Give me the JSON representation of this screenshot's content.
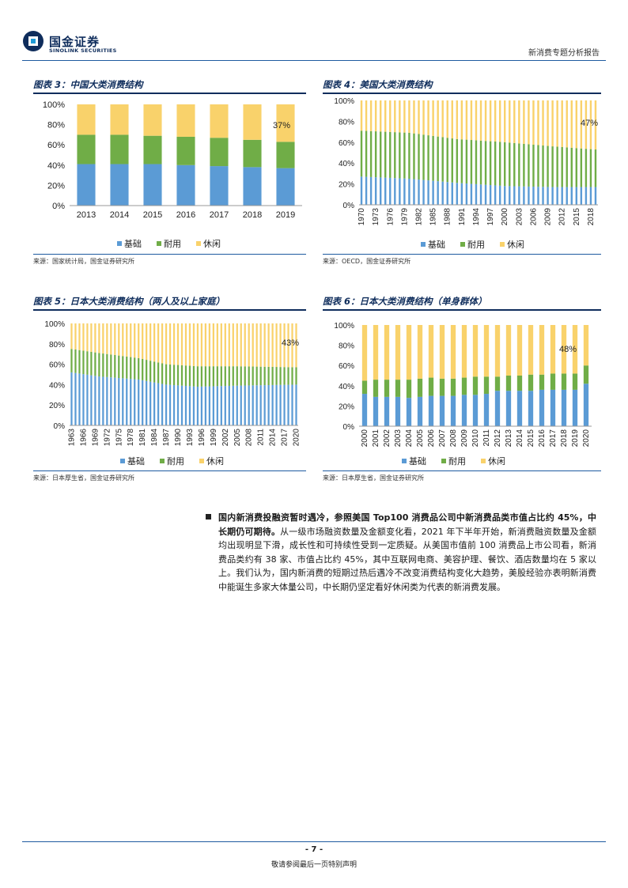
{
  "header": {
    "company_cn": "国金证券",
    "company_en": "SINOLINK SECURITIES",
    "report_title": "新消费专题分析报告"
  },
  "colors": {
    "basic": "#5b9bd5",
    "durable": "#70ad47",
    "leisure": "#f9d26b",
    "brand": "#0f2d5c"
  },
  "legend": [
    "基础",
    "耐用",
    "休闲"
  ],
  "figures": [
    {
      "title": "图表 3：中国大类消费结构",
      "source": "来源：国家统计局，国金证券研究所",
      "chart_data": {
        "type": "bar",
        "stacked": true,
        "categories": [
          "2013",
          "2014",
          "2015",
          "2016",
          "2017",
          "2018",
          "2019"
        ],
        "series": [
          {
            "name": "基础",
            "values": [
              41,
              41,
              41,
              40,
              39,
              38,
              37
            ]
          },
          {
            "name": "耐用",
            "values": [
              29,
              29,
              28,
              28,
              28,
              27,
              26
            ]
          },
          {
            "name": "休闲",
            "values": [
              30,
              30,
              31,
              32,
              33,
              35,
              37
            ]
          }
        ],
        "ylim": [
          0,
          100
        ],
        "yticks": [
          "0%",
          "20%",
          "40%",
          "60%",
          "80%",
          "100%"
        ],
        "annotation": "37%",
        "legend_position": "bottom"
      }
    },
    {
      "title": "图表 4：美国大类消费结构",
      "source": "来源：OECD，国金证券研究所",
      "chart_data": {
        "type": "bar",
        "stacked": true,
        "year_start": 1970,
        "year_end": 2019,
        "label_years": [
          "1970",
          "1973",
          "1976",
          "1979",
          "1982",
          "1985",
          "1988",
          "1991",
          "1994",
          "1997",
          "2000",
          "2003",
          "2006",
          "2009",
          "2012",
          "2015",
          "2018"
        ],
        "series": [
          {
            "name": "基础",
            "points": [
              [
                1970,
                27
              ],
              [
                1980,
                25
              ],
              [
                1990,
                21
              ],
              [
                2000,
                18
              ],
              [
                2010,
                17
              ],
              [
                2019,
                17
              ]
            ]
          },
          {
            "name": "耐用",
            "points": [
              [
                1970,
                44
              ],
              [
                1980,
                44
              ],
              [
                1990,
                42
              ],
              [
                2000,
                42
              ],
              [
                2010,
                39
              ],
              [
                2019,
                36
              ]
            ]
          },
          {
            "name": "休闲",
            "points": [
              [
                1970,
                29
              ],
              [
                1980,
                31
              ],
              [
                1990,
                37
              ],
              [
                2000,
                40
              ],
              [
                2010,
                44
              ],
              [
                2019,
                47
              ]
            ]
          }
        ],
        "ylim": [
          0,
          100
        ],
        "yticks": [
          "0%",
          "20%",
          "40%",
          "60%",
          "80%",
          "100%"
        ],
        "annotation": "47%",
        "legend_position": "bottom"
      }
    },
    {
      "title": "图表 5：日本大类消费结构（两人及以上家庭）",
      "source": "来源：日本厚生省，国金证券研究所",
      "chart_data": {
        "type": "bar",
        "stacked": true,
        "year_start": 1963,
        "year_end": 2020,
        "label_years": [
          "1963",
          "1966",
          "1969",
          "1972",
          "1975",
          "1978",
          "1981",
          "1984",
          "1987",
          "1990",
          "1993",
          "1996",
          "1999",
          "2002",
          "2005",
          "2008",
          "2011",
          "2014",
          "2017",
          "2020"
        ],
        "series": [
          {
            "name": "基础",
            "points": [
              [
                1963,
                52
              ],
              [
                1970,
                48
              ],
              [
                1980,
                45
              ],
              [
                1987,
                40
              ],
              [
                1995,
                38
              ],
              [
                2005,
                39
              ],
              [
                2020,
                40
              ]
            ]
          },
          {
            "name": "耐用",
            "points": [
              [
                1963,
                23
              ],
              [
                1970,
                23
              ],
              [
                1980,
                21
              ],
              [
                1987,
                20
              ],
              [
                1995,
                20
              ],
              [
                2005,
                19
              ],
              [
                2020,
                17
              ]
            ]
          },
          {
            "name": "休闲",
            "points": [
              [
                1963,
                25
              ],
              [
                1970,
                29
              ],
              [
                1980,
                34
              ],
              [
                1987,
                40
              ],
              [
                1995,
                42
              ],
              [
                2005,
                42
              ],
              [
                2020,
                43
              ]
            ]
          }
        ],
        "ylim": [
          0,
          100
        ],
        "yticks": [
          "0%",
          "20%",
          "40%",
          "60%",
          "80%",
          "100%"
        ],
        "annotation": "43%",
        "legend_position": "bottom"
      }
    },
    {
      "title": "图表 6：日本大类消费结构（单身群体）",
      "source": "来源：日本厚生省，国金证券研究所",
      "chart_data": {
        "type": "bar",
        "stacked": true,
        "categories": [
          "2000",
          "2001",
          "2002",
          "2003",
          "2004",
          "2005",
          "2006",
          "2007",
          "2008",
          "2009",
          "2010",
          "2011",
          "2012",
          "2013",
          "2014",
          "2015",
          "2016",
          "2017",
          "2018",
          "2019",
          "2020"
        ],
        "series": [
          {
            "name": "基础",
            "values": [
              32,
              29,
              29,
              29,
              28,
              29,
              30,
              30,
              30,
              31,
              31,
              32,
              35,
              35,
              35,
              35,
              36,
              36,
              36,
              36,
              42
            ]
          },
          {
            "name": "耐用",
            "values": [
              13,
              17,
              17,
              17,
              18,
              18,
              18,
              17,
              17,
              17,
              18,
              17,
              14,
              15,
              15,
              16,
              15,
              16,
              16,
              16,
              18
            ]
          },
          {
            "name": "休闲",
            "values": [
              55,
              54,
              54,
              54,
              54,
              53,
              52,
              53,
              53,
              52,
              51,
              51,
              51,
              50,
              50,
              49,
              49,
              48,
              48,
              48,
              40
            ]
          }
        ],
        "ylim": [
          0,
          100
        ],
        "yticks": [
          "0%",
          "20%",
          "40%",
          "60%",
          "80%",
          "100%"
        ],
        "annotation": "48%",
        "legend_position": "bottom"
      }
    }
  ],
  "paragraph": {
    "bold_text": "国内新消费投融资暂时遇冷，参照美国 Top100 消费品公司中新消费品类市值占比约 45%，中长期仍可期待。",
    "body_text": "从一级市场融资数量及金额变化看，2021 年下半年开始，新消费融资数量及金额均出现明显下滑，成长性和可持续性受到一定质疑。从美国市值前 100 消费品上市公司看，新消费品类约有 38 家、市值占比约 45%，其中互联网电商、美容护理、餐饮、酒店数量均在 5 家以上。我们认为，国内新消费的短期过热后遇冷不改变消费结构变化大趋势，美股经验亦表明新消费中能诞生多家大体量公司，中长期仍坚定看好休闲类为代表的新消费发展。"
  },
  "footer": {
    "page_number": "- 7 -",
    "note": "敬请参阅最后一页特别声明"
  }
}
